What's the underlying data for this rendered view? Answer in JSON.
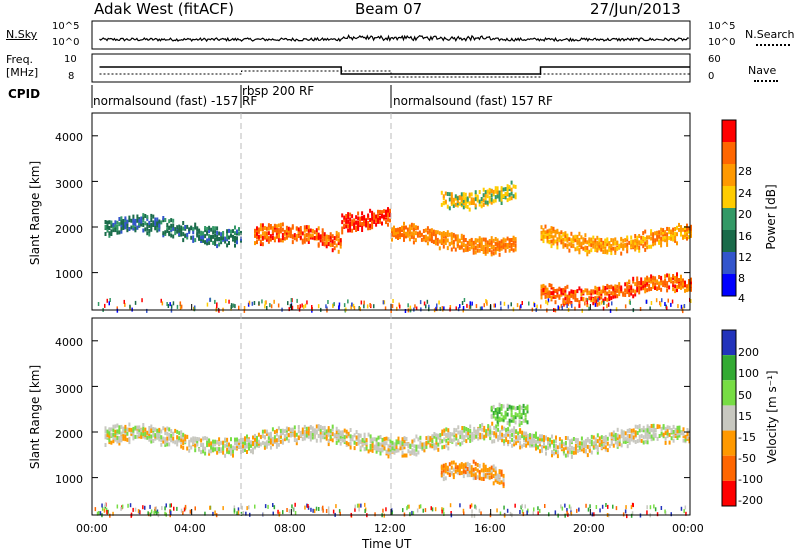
{
  "header": {
    "station": "Adak West (fitACF)",
    "beam": "Beam 07",
    "date": "27/Jun/2013"
  },
  "noise_panel": {
    "left_label": "N.Sky",
    "right_label": "N.Search",
    "ticks_left": [
      "10^5",
      "10^0"
    ],
    "ticks_right": [
      "10^5",
      "10^0"
    ]
  },
  "freq_panel": {
    "left_label_1": "Freq.",
    "left_label_2": "[MHz]",
    "ticks_left": [
      "10",
      "8"
    ],
    "right_label": "Nave",
    "ticks_right": [
      "60",
      "0"
    ]
  },
  "cpid": {
    "label": "CPID",
    "segments": [
      {
        "start": 0,
        "end": 6,
        "text": "normalsound (fast) -157 RF"
      },
      {
        "start": 6,
        "end": 12,
        "text": "rbsp 200 RF"
      },
      {
        "start": 12,
        "end": 24,
        "text": "normalsound (fast) 157 RF"
      }
    ]
  },
  "power_panel": {
    "ylabel": "Slant Range [km]",
    "yticks": [
      "4000",
      "3000",
      "2000",
      "1000"
    ],
    "colorbar_label": "Power [dB]",
    "colorbar_ticks": [
      "28",
      "24",
      "20",
      "16",
      "12",
      "8",
      "4"
    ],
    "colors": [
      "#ff0000",
      "#ff6600",
      "#ff9900",
      "#ffcc00",
      "#339966",
      "#1a6b4a",
      "#3355cc",
      "#0000ff"
    ]
  },
  "velocity_panel": {
    "ylabel": "Slant Range [km]",
    "yticks": [
      "4000",
      "3000",
      "2000",
      "1000"
    ],
    "colorbar_label": "Velocity [m s⁻¹]",
    "colorbar_ticks": [
      "200",
      "100",
      "50",
      "15",
      "-15",
      "-50",
      "-100",
      "-200"
    ],
    "colors": [
      "#2233bb",
      "#33aa33",
      "#77dd44",
      "#c8c8c0",
      "#ff9900",
      "#ff6600",
      "#ff0000"
    ]
  },
  "x_axis": {
    "label": "Time UT",
    "ticks": [
      "00:00",
      "04:00",
      "08:00",
      "12:00",
      "16:00",
      "20:00",
      "00:00"
    ]
  },
  "chart_data": {
    "type": "heatmap",
    "title": "Adak West (fitACF)   Beam 07   27/Jun/2013",
    "xlabel": "Time UT",
    "ylabel": "Slant Range [km]",
    "xlim": [
      "00:00",
      "24:00"
    ],
    "ylim": [
      180,
      4500
    ],
    "series": [
      {
        "name": "Power [dB]",
        "zlim": [
          0,
          32
        ],
        "bands": [
          {
            "t0": 0.5,
            "t1": 6,
            "r": 2000,
            "v": 10
          },
          {
            "t0": 6.5,
            "t1": 10,
            "r": 1800,
            "v": 26
          },
          {
            "t0": 10,
            "t1": 12,
            "r": 2300,
            "v": 28
          },
          {
            "t0": 12,
            "t1": 17,
            "r": 1800,
            "v": 24
          },
          {
            "t0": 14,
            "t1": 17,
            "r": 2800,
            "v": 18
          },
          {
            "t0": 18,
            "t1": 24,
            "r": 1800,
            "v": 22
          },
          {
            "t0": 18,
            "t1": 24,
            "r": 700,
            "v": 26
          }
        ]
      },
      {
        "name": "Velocity [m s⁻¹]",
        "zlim": [
          -200,
          200
        ],
        "bands": [
          {
            "t0": 0.5,
            "t1": 24,
            "r": 1900,
            "v": 0
          },
          {
            "t0": 14,
            "t1": 16.5,
            "r": 1100,
            "v": -60
          },
          {
            "t0": 16,
            "t1": 17.5,
            "r": 2600,
            "v": 60
          }
        ]
      }
    ]
  }
}
